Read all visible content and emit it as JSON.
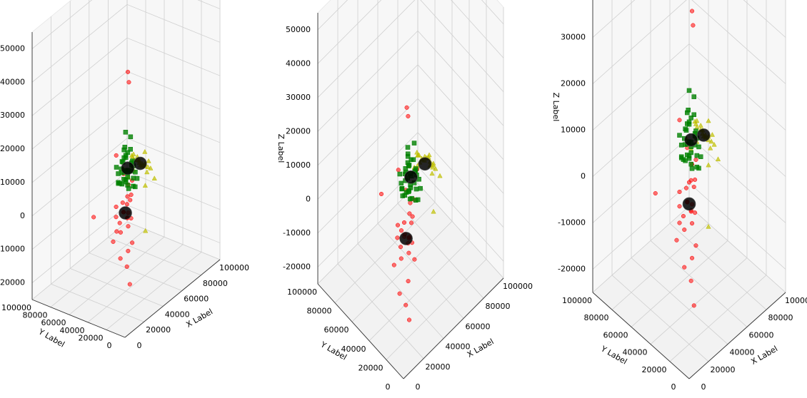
{
  "chart_data": [
    {
      "type": "scatter",
      "view": "low elevation, azimuth ~45deg",
      "xlabel": "X Label",
      "ylabel": "Y Label",
      "zlabel": "Z Label",
      "xlim": [
        0,
        100000
      ],
      "ylim": [
        0,
        100000
      ],
      "zlim": [
        -25000,
        55000
      ],
      "xticks": [
        "0",
        "20000",
        "40000",
        "60000",
        "80000",
        "100000"
      ],
      "yticks": [
        "0",
        "20000",
        "40000",
        "60000",
        "80000",
        "100000"
      ],
      "zticks": [
        "-20000",
        "-10000",
        "0",
        "10000",
        "20000",
        "30000",
        "40000",
        "50000"
      ],
      "grid": true
    },
    {
      "type": "scatter",
      "view": "high elevation, azimuth ~45deg",
      "xlabel": "X Label",
      "ylabel": "Y Label",
      "zlabel": "Z Label",
      "xlim": [
        0,
        100000
      ],
      "ylim": [
        0,
        100000
      ],
      "zlim": [
        -25000,
        55000
      ],
      "xticks": [
        "0",
        "20000",
        "40000",
        "60000",
        "80000",
        "100000"
      ],
      "yticks": [
        "0",
        "20000",
        "40000",
        "60000",
        "80000",
        "100000"
      ],
      "zticks": [
        "-20000",
        "-10000",
        "0",
        "10000",
        "20000",
        "30000",
        "40000",
        "50000"
      ],
      "grid": true
    },
    {
      "type": "scatter",
      "view": "near top-down, azimuth ~45deg",
      "xlabel": "X Label",
      "ylabel": "Y Label",
      "zlabel": "Z Label",
      "xlim": [
        0,
        100000
      ],
      "ylim": [
        0,
        100000
      ],
      "zlim": [
        -25000,
        55000
      ],
      "xticks": [
        "0",
        "20000",
        "40000",
        "60000",
        "80000",
        "100000"
      ],
      "yticks": [
        "0",
        "20000",
        "40000",
        "60000",
        "80000",
        "100000"
      ],
      "zticks": [
        "-20000",
        "-10000",
        "0",
        "10000",
        "20000",
        "30000",
        "40000",
        "50000"
      ],
      "grid": true
    }
  ],
  "series_style": {
    "red": {
      "marker": "circle",
      "color": "#ff0000"
    },
    "green": {
      "marker": "square",
      "color": "#008000"
    },
    "yellow": {
      "marker": "triangle",
      "color": "#bfbf00"
    },
    "centroid": {
      "marker": "large-circle",
      "color": "#000000"
    }
  },
  "clusters": {
    "red": [
      [
        5000,
        2000,
        53000
      ],
      [
        8000,
        4000,
        49000
      ],
      [
        4000,
        2000,
        -5000
      ],
      [
        3000,
        8000,
        -3000
      ],
      [
        10000,
        5000,
        -12000
      ],
      [
        15000,
        12000,
        -4000
      ],
      [
        20000,
        18000,
        4000
      ],
      [
        18000,
        20000,
        6000
      ],
      [
        22000,
        19000,
        5000
      ],
      [
        25000,
        20000,
        8000
      ],
      [
        12000,
        25000,
        -2000
      ],
      [
        26000,
        24000,
        2000
      ],
      [
        28000,
        30000,
        14000
      ],
      [
        30000,
        28000,
        7000
      ],
      [
        24000,
        34000,
        20000
      ],
      [
        35000,
        28000,
        -8000
      ],
      [
        45000,
        55000,
        -10000
      ],
      [
        55000,
        90000,
        -12000
      ],
      [
        95000,
        95000,
        -18000
      ],
      [
        16000,
        22000,
        3000
      ],
      [
        19000,
        16000,
        2000
      ],
      [
        21000,
        23000,
        5000
      ],
      [
        23000,
        26000,
        7000
      ],
      [
        17000,
        27000,
        4000
      ],
      [
        14000,
        19000,
        1000
      ],
      [
        27000,
        21000,
        9000
      ],
      [
        29000,
        26000,
        11000
      ],
      [
        31000,
        24000,
        12000
      ],
      [
        20000,
        30000,
        6000
      ],
      [
        24000,
        18000,
        3000
      ]
    ],
    "green": [
      [
        30000,
        30000,
        26000
      ],
      [
        40000,
        35000,
        18000
      ],
      [
        42000,
        40000,
        16000
      ],
      [
        35000,
        38000,
        15000
      ],
      [
        38000,
        42000,
        14000
      ],
      [
        45000,
        38000,
        13000
      ],
      [
        36000,
        34000,
        12000
      ],
      [
        32000,
        40000,
        12000
      ],
      [
        40000,
        45000,
        11000
      ],
      [
        44000,
        42000,
        10000
      ],
      [
        38000,
        36000,
        10000
      ],
      [
        34000,
        32000,
        9000
      ],
      [
        42000,
        34000,
        9000
      ],
      [
        46000,
        46000,
        9000
      ],
      [
        39000,
        39000,
        8000
      ],
      [
        36000,
        44000,
        8000
      ],
      [
        41000,
        31000,
        7000
      ],
      [
        43000,
        37000,
        13000
      ],
      [
        37000,
        41000,
        11000
      ],
      [
        35000,
        35000,
        10000
      ],
      [
        39000,
        33000,
        12000
      ],
      [
        41000,
        43000,
        10000
      ],
      [
        33000,
        37000,
        9000
      ],
      [
        47000,
        41000,
        11000
      ],
      [
        38000,
        30000,
        8000
      ],
      [
        40000,
        40000,
        15000
      ],
      [
        36000,
        36000,
        17000
      ],
      [
        44000,
        36000,
        12000
      ],
      [
        34000,
        44000,
        13000
      ],
      [
        42000,
        44000,
        14000
      ],
      [
        32000,
        34000,
        11000
      ],
      [
        48000,
        38000,
        9000
      ],
      [
        30000,
        36000,
        10000
      ],
      [
        46000,
        34000,
        8000
      ],
      [
        38000,
        46000,
        7000
      ],
      [
        40000,
        37000,
        6000
      ],
      [
        45000,
        40000,
        20000
      ],
      [
        43000,
        45000,
        16000
      ],
      [
        37000,
        38000,
        19000
      ]
    ],
    "yellow": [
      [
        60000,
        40000,
        12000
      ],
      [
        55000,
        48000,
        8000
      ],
      [
        65000,
        45000,
        6000
      ],
      [
        70000,
        55000,
        4000
      ],
      [
        58000,
        52000,
        10000
      ],
      [
        62000,
        38000,
        9000
      ],
      [
        52000,
        55000,
        7000
      ],
      [
        68000,
        42000,
        5000
      ],
      [
        72000,
        50000,
        2000
      ],
      [
        66000,
        58000,
        3000
      ],
      [
        75000,
        45000,
        0
      ],
      [
        80000,
        60000,
        -5000
      ],
      [
        64000,
        62000,
        1000
      ],
      [
        56000,
        44000,
        11000
      ],
      [
        90000,
        70000,
        -22000
      ],
      [
        59000,
        47000,
        9000
      ],
      [
        61000,
        53000,
        8000
      ],
      [
        63000,
        49000,
        7000
      ],
      [
        67000,
        47000,
        6000
      ],
      [
        57000,
        50000,
        10000
      ],
      [
        69000,
        52000,
        5000
      ],
      [
        71000,
        48000,
        4000
      ],
      [
        54000,
        46000,
        12000
      ],
      [
        65000,
        51000,
        7000
      ],
      [
        73000,
        56000,
        3000
      ]
    ],
    "centroid": [
      [
        18000,
        18000,
        6000
      ],
      [
        40000,
        38000,
        12000
      ],
      [
        60000,
        45000,
        8000
      ]
    ]
  }
}
